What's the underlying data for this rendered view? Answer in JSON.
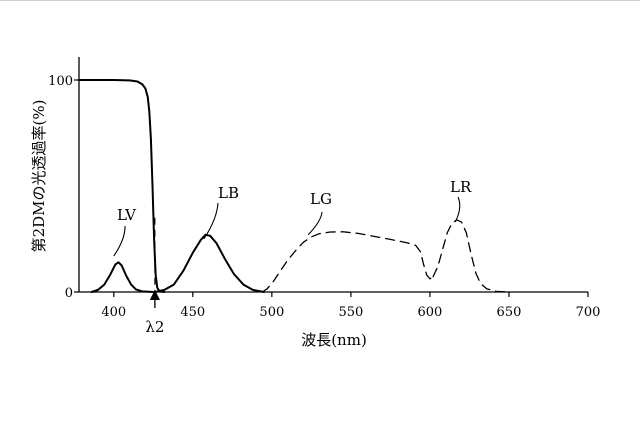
{
  "chart_data": {
    "type": "line",
    "title": "",
    "xlabel": "波長(nm)",
    "ylabel": "第2DMの光透過率(%)",
    "xlim": [
      378,
      700
    ],
    "ylim": [
      0,
      100
    ],
    "x_ticks": [
      400,
      450,
      500,
      550,
      600,
      650,
      700
    ],
    "y_ticks": [
      0,
      100
    ],
    "grid": false,
    "legend": "none",
    "marker": {
      "label": "λ2",
      "x": 426
    },
    "series": [
      {
        "name": "第2DM",
        "style": "solid",
        "points": [
          [
            378,
            100
          ],
          [
            400,
            100
          ],
          [
            410,
            99.8
          ],
          [
            415,
            99.3
          ],
          [
            418,
            98
          ],
          [
            420,
            96
          ],
          [
            421.5,
            92
          ],
          [
            422.5,
            85
          ],
          [
            423.5,
            72
          ],
          [
            424.5,
            50
          ],
          [
            425.5,
            25
          ],
          [
            426.5,
            8
          ],
          [
            427.5,
            2
          ],
          [
            429,
            0.3
          ],
          [
            432,
            0
          ]
        ]
      },
      {
        "name": "LV",
        "style": "solid",
        "points": [
          [
            386,
            0
          ],
          [
            390,
            1
          ],
          [
            394,
            3.5
          ],
          [
            398,
            8.5
          ],
          [
            401,
            13
          ],
          [
            403,
            14
          ],
          [
            405,
            12.5
          ],
          [
            408,
            7.5
          ],
          [
            411,
            3.5
          ],
          [
            414,
            1.2
          ],
          [
            418,
            0.3
          ],
          [
            425,
            0
          ]
        ]
      },
      {
        "name": "LB",
        "style": "solid",
        "points": [
          [
            426,
            0
          ],
          [
            432,
            1
          ],
          [
            438,
            3.5
          ],
          [
            444,
            10
          ],
          [
            450,
            18.5
          ],
          [
            455,
            24.5
          ],
          [
            458,
            27
          ],
          [
            461,
            26.5
          ],
          [
            465,
            23
          ],
          [
            470,
            16
          ],
          [
            476,
            8.5
          ],
          [
            482,
            3.5
          ],
          [
            488,
            1
          ],
          [
            495,
            0
          ]
        ]
      },
      {
        "name": "LG",
        "style": "dashed",
        "points": [
          [
            494,
            0
          ],
          [
            497,
            1.5
          ],
          [
            501,
            5
          ],
          [
            505,
            9.5
          ],
          [
            510,
            15
          ],
          [
            515,
            19.5
          ],
          [
            520,
            23.5
          ],
          [
            525,
            26
          ],
          [
            530,
            27.5
          ],
          [
            537,
            28.3
          ],
          [
            545,
            28.4
          ],
          [
            555,
            27.6
          ],
          [
            565,
            26.2
          ],
          [
            575,
            24.8
          ],
          [
            585,
            23.3
          ],
          [
            591,
            22
          ],
          [
            594,
            19
          ],
          [
            596,
            13
          ],
          [
            598,
            8
          ],
          [
            600,
            6.2
          ],
          [
            602,
            7.2
          ]
        ]
      },
      {
        "name": "LR",
        "style": "dashed",
        "points": [
          [
            602,
            7.2
          ],
          [
            605,
            12
          ],
          [
            608,
            20
          ],
          [
            611,
            28
          ],
          [
            614,
            32.5
          ],
          [
            617,
            34
          ],
          [
            620,
            33
          ],
          [
            623,
            28
          ],
          [
            626,
            18
          ],
          [
            629,
            9
          ],
          [
            632,
            4
          ],
          [
            636,
            1.5
          ],
          [
            642,
            0.3
          ],
          [
            650,
            0
          ]
        ]
      }
    ],
    "annotations": [
      {
        "text": "LV",
        "series": "LV"
      },
      {
        "text": "LB",
        "series": "LB"
      },
      {
        "text": "LG",
        "series": "LG"
      },
      {
        "text": "LR",
        "series": "LR"
      }
    ]
  }
}
